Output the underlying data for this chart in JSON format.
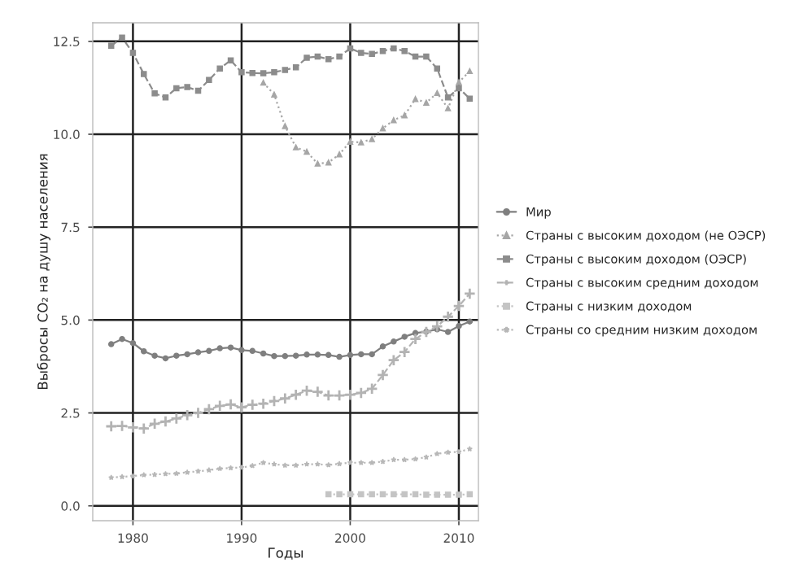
{
  "chart_data": {
    "type": "line",
    "xlabel": "Годы",
    "ylabel": "Выбросы CO₂ на душу населения",
    "xlim": [
      1976.3,
      2011.8
    ],
    "xticks": [
      1980,
      1990,
      2000,
      2010
    ],
    "ylim": [
      -0.4,
      13.0
    ],
    "yticks": [
      {
        "value": 0,
        "label": "0.0"
      },
      2.5,
      {
        "value": 5,
        "label": "5.0"
      },
      7.5,
      {
        "value": 10,
        "label": "10.0"
      },
      12.5
    ],
    "grid": true,
    "legend": "right",
    "series": [
      {
        "name": "Мир",
        "color": "#7f7f7f",
        "marker": "circle",
        "line_style": "solid",
        "x": [
          1978,
          1979,
          1980,
          1981,
          1982,
          1983,
          1984,
          1985,
          1986,
          1987,
          1988,
          1989,
          1990,
          1991,
          1992,
          1993,
          1994,
          1995,
          1996,
          1997,
          1998,
          1999,
          2000,
          2001,
          2002,
          2003,
          2004,
          2005,
          2006,
          2007,
          2008,
          2009,
          2010,
          2011
        ],
        "values": [
          4.35,
          4.49,
          4.38,
          4.16,
          4.04,
          3.97,
          4.04,
          4.08,
          4.13,
          4.17,
          4.24,
          4.26,
          4.19,
          4.17,
          4.1,
          4.03,
          4.03,
          4.04,
          4.07,
          4.07,
          4.06,
          4.01,
          4.06,
          4.08,
          4.08,
          4.29,
          4.42,
          4.55,
          4.65,
          4.69,
          4.75,
          4.68,
          4.84,
          4.96
        ]
      },
      {
        "name": "Страны с высоким доходом (не ОЭСР)",
        "color": "#a6a6a6",
        "marker": "triangle",
        "line_style": "dotted",
        "x": [
          1992,
          1993,
          1994,
          1995,
          1996,
          1997,
          1998,
          1999,
          2000,
          2001,
          2002,
          2003,
          2004,
          2005,
          2006,
          2007,
          2008,
          2009,
          2010,
          2011
        ],
        "values": [
          11.39,
          11.07,
          10.22,
          9.65,
          9.53,
          9.21,
          9.24,
          9.46,
          9.8,
          9.78,
          9.87,
          10.16,
          10.38,
          10.51,
          10.95,
          10.85,
          11.11,
          10.7,
          11.4,
          11.7
        ]
      },
      {
        "name": "Страны с высоким доходом (ОЭСР)",
        "color": "#8c8c8c",
        "marker": "square",
        "line_style": "dashed",
        "x": [
          1978,
          1979,
          1980,
          1981,
          1982,
          1983,
          1984,
          1985,
          1986,
          1987,
          1988,
          1989,
          1990,
          1991,
          1992,
          1993,
          1994,
          1995,
          1996,
          1997,
          1998,
          1999,
          2000,
          2001,
          2002,
          2003,
          2004,
          2005,
          2006,
          2007,
          2008,
          2009,
          2010,
          2011
        ],
        "values": [
          12.38,
          12.6,
          12.19,
          11.62,
          11.1,
          10.99,
          11.24,
          11.27,
          11.17,
          11.46,
          11.77,
          11.99,
          11.67,
          11.65,
          11.64,
          11.67,
          11.73,
          11.8,
          12.06,
          12.09,
          12.02,
          12.09,
          12.31,
          12.19,
          12.16,
          12.24,
          12.31,
          12.24,
          12.09,
          12.09,
          11.77,
          10.99,
          11.24,
          10.96
        ]
      },
      {
        "name": "Страны с высоким средним доходом",
        "color": "#b3b3b3",
        "marker": "cross",
        "line_style": "dashed",
        "x": [
          1978,
          1979,
          1980,
          1981,
          1982,
          1983,
          1984,
          1985,
          1986,
          1987,
          1988,
          1989,
          1990,
          1991,
          1992,
          1993,
          1994,
          1995,
          1996,
          1997,
          1998,
          1999,
          2000,
          2001,
          2002,
          2003,
          2004,
          2005,
          2006,
          2007,
          2008,
          2009,
          2010,
          2011
        ],
        "values": [
          2.14,
          2.15,
          2.11,
          2.08,
          2.21,
          2.27,
          2.35,
          2.44,
          2.5,
          2.6,
          2.69,
          2.73,
          2.65,
          2.72,
          2.75,
          2.82,
          2.89,
          2.99,
          3.1,
          3.07,
          2.97,
          2.97,
          2.99,
          3.04,
          3.15,
          3.52,
          3.92,
          4.14,
          4.49,
          4.68,
          4.83,
          5.09,
          5.38,
          5.71
        ]
      },
      {
        "name": "Страны с низким доходом",
        "color": "#c4c4c4",
        "marker": "square",
        "line_style": "dotted",
        "x": [
          1998,
          1999,
          2000,
          2001,
          2002,
          2003,
          2004,
          2005,
          2006,
          2007,
          2008,
          2009,
          2010,
          2011
        ],
        "values": [
          0.31,
          0.31,
          0.31,
          0.31,
          0.31,
          0.31,
          0.31,
          0.31,
          0.31,
          0.3,
          0.3,
          0.3,
          0.3,
          0.31
        ]
      },
      {
        "name": "Страны со средним низким доходом",
        "color": "#b8b8b8",
        "marker": "star",
        "line_style": "dotted",
        "x": [
          1978,
          1979,
          1980,
          1981,
          1982,
          1983,
          1984,
          1985,
          1986,
          1987,
          1988,
          1989,
          1990,
          1991,
          1992,
          1993,
          1994,
          1995,
          1996,
          1997,
          1998,
          1999,
          2000,
          2001,
          2002,
          2003,
          2004,
          2005,
          2006,
          2007,
          2008,
          2009,
          2010,
          2011
        ],
        "values": [
          0.76,
          0.78,
          0.8,
          0.83,
          0.84,
          0.86,
          0.87,
          0.9,
          0.93,
          0.96,
          1.0,
          1.02,
          1.03,
          1.08,
          1.16,
          1.12,
          1.09,
          1.09,
          1.12,
          1.12,
          1.1,
          1.13,
          1.16,
          1.16,
          1.16,
          1.19,
          1.24,
          1.24,
          1.26,
          1.31,
          1.4,
          1.44,
          1.45,
          1.53
        ]
      }
    ]
  }
}
